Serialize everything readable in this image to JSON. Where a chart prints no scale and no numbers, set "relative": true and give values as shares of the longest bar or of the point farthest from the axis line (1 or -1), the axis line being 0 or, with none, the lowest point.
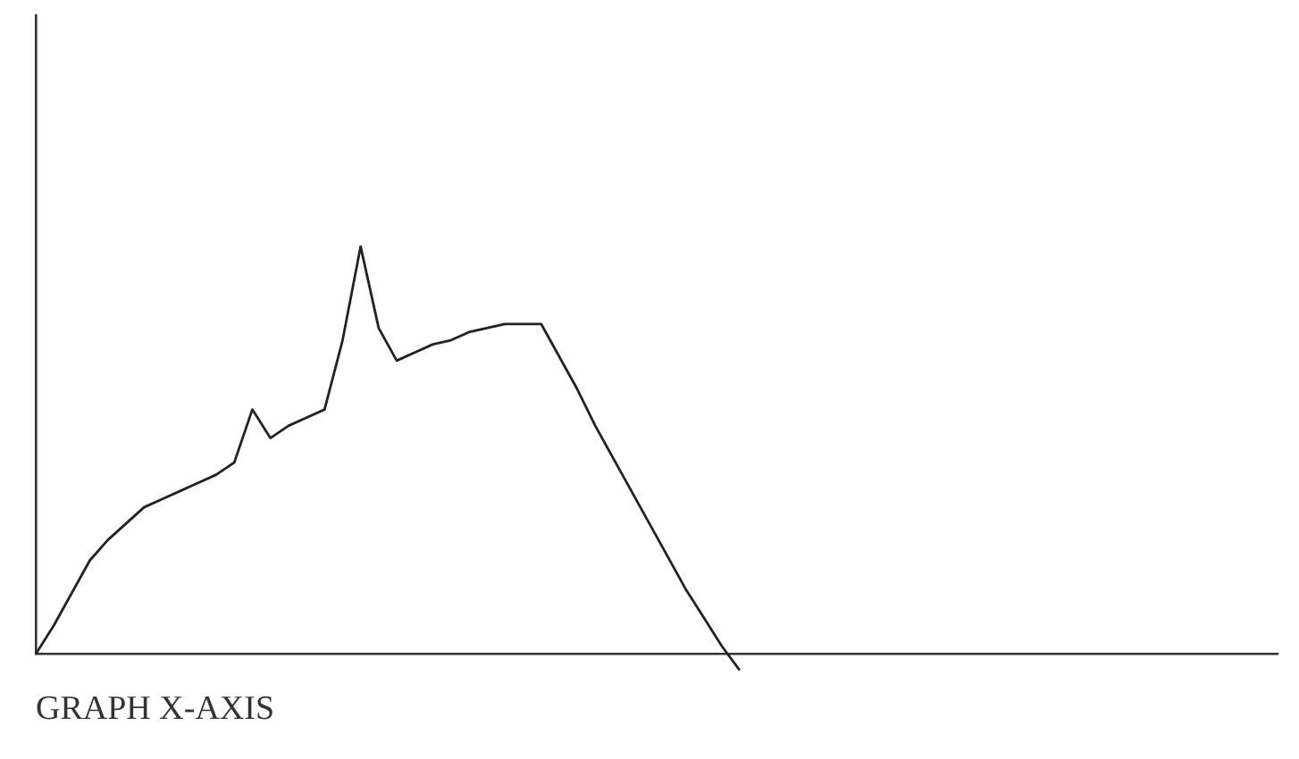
{
  "chart_data": {
    "type": "line",
    "relative": true,
    "xlabel": "GRAPH X-AXIS",
    "color": "#222222",
    "marker": "none",
    "grid": false,
    "legend": false,
    "categories": [
      null,
      null,
      null,
      null,
      null,
      null,
      null,
      null,
      null,
      null,
      null,
      null,
      null,
      null,
      null,
      null,
      null,
      null,
      null,
      null,
      null,
      null,
      null,
      null,
      null,
      null,
      null,
      null,
      null,
      null,
      null,
      null,
      null,
      null,
      null,
      null,
      null,
      null,
      null,
      null
    ],
    "values": [
      0,
      0.07,
      0.15,
      0.23,
      0.28,
      0.32,
      0.36,
      0.38,
      0.4,
      0.42,
      0.44,
      0.47,
      0.6,
      0.53,
      0.56,
      0.58,
      0.6,
      0.77,
      1,
      0.8,
      0.72,
      0.74,
      0.76,
      0.77,
      0.79,
      0.8,
      0.81,
      0.81,
      0.81,
      0.73,
      0.65,
      0.56,
      0.48,
      0.4,
      0.32,
      0.24,
      0.16,
      0.09,
      0.02,
      -0.04
    ]
  }
}
